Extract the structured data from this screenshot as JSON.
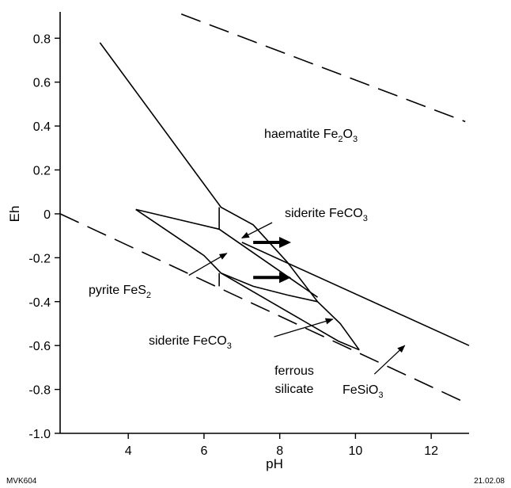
{
  "chart_data": {
    "type": "diagram",
    "xlabel": "pH",
    "ylabel": "Eh",
    "xlim": [
      2.2,
      13.0
    ],
    "ylim": [
      -1.0,
      0.92
    ],
    "x_ticks": [
      4,
      6,
      8,
      10,
      12
    ],
    "x_tick_labels": [
      "4",
      "6",
      "8",
      "10",
      "12"
    ],
    "y_ticks": [
      0.8,
      0.6,
      0.4,
      0.2,
      0,
      -0.2,
      -0.4,
      -0.6,
      -0.8,
      -1.0
    ],
    "y_tick_labels": [
      "0.8",
      "0.6",
      "0.4",
      "0.2",
      "0",
      "-0.2",
      "-0.4",
      "-0.6",
      "-0.8",
      "-1.0"
    ],
    "boundaries": [
      {
        "style": "dashed",
        "points": [
          [
            5.4,
            0.91
          ],
          [
            12.9,
            0.42
          ]
        ]
      },
      {
        "style": "dashed",
        "points": [
          [
            2.2,
            0.0
          ],
          [
            12.9,
            -0.86
          ]
        ]
      },
      {
        "style": "solid",
        "points": [
          [
            3.25,
            0.78
          ],
          [
            6.45,
            0.03
          ],
          [
            7.3,
            -0.05
          ],
          [
            8.2,
            -0.22
          ],
          [
            9.0,
            -0.4
          ],
          [
            9.6,
            -0.5
          ],
          [
            10.1,
            -0.62
          ]
        ]
      },
      {
        "style": "solid",
        "points": [
          [
            10.1,
            -0.62
          ],
          [
            9.55,
            -0.58
          ],
          [
            6.45,
            -0.27
          ],
          [
            6.0,
            -0.19
          ],
          [
            4.2,
            0.02
          ]
        ]
      },
      {
        "style": "solid",
        "points": [
          [
            4.2,
            0.02
          ],
          [
            6.4,
            -0.07
          ],
          [
            9.0,
            -0.38
          ]
        ]
      },
      {
        "style": "solid",
        "points": [
          [
            6.45,
            -0.27
          ],
          [
            7.3,
            -0.33
          ],
          [
            8.2,
            -0.37
          ],
          [
            9.0,
            -0.4
          ]
        ]
      },
      {
        "style": "solid",
        "points": [
          [
            7.0,
            -0.13
          ],
          [
            13.0,
            -0.6
          ]
        ]
      },
      {
        "style": "solid",
        "points": [
          [
            6.4,
            0.03
          ],
          [
            6.4,
            -0.07
          ]
        ]
      },
      {
        "style": "solid",
        "points": [
          [
            6.4,
            -0.27
          ],
          [
            6.4,
            -0.33
          ]
        ]
      }
    ],
    "flow_arrows": [
      {
        "from": [
          7.3,
          -0.13
        ],
        "to": [
          8.3,
          -0.13
        ]
      },
      {
        "from": [
          7.3,
          -0.29
        ],
        "to": [
          8.3,
          -0.29
        ]
      }
    ],
    "fields": [
      {
        "name": "haematite",
        "formula": "Fe2O3",
        "label": "haematite Fe",
        "sub1": "2",
        "mid": "O",
        "sub2": "3",
        "x": 7.15,
        "y": 0.36
      },
      {
        "name": "siderite-upper",
        "label": "siderite FeCO",
        "sub1": "3",
        "x": 7.2,
        "y": 0.0
      },
      {
        "name": "pyrite",
        "label": "pyrite FeS",
        "sub1": "2",
        "x": 2.9,
        "y": -0.34
      },
      {
        "name": "siderite-lower",
        "label": "siderite FeCO",
        "sub1": "3",
        "x": 3.8,
        "y": -0.57
      },
      {
        "name": "ferrous-silicate",
        "label_line1": "ferrous",
        "label_line2": "silicate",
        "x": 7.45,
        "y": -0.67
      },
      {
        "name": "fesio3",
        "label": "FeSiO",
        "sub1": "3",
        "x": 8.8,
        "y": -0.76
      }
    ],
    "label_pointers": [
      {
        "from": [
          7.8,
          -0.04
        ],
        "to": [
          7.0,
          -0.11
        ]
      },
      {
        "from": [
          5.6,
          -0.28
        ],
        "to": [
          6.6,
          -0.18
        ]
      },
      {
        "from": [
          7.85,
          -0.56
        ],
        "to": [
          9.4,
          -0.48
        ]
      },
      {
        "from": [
          10.5,
          -0.73
        ],
        "to": [
          11.3,
          -0.6
        ]
      }
    ],
    "footer_left": "MVK604",
    "footer_right": "21.02.08"
  }
}
